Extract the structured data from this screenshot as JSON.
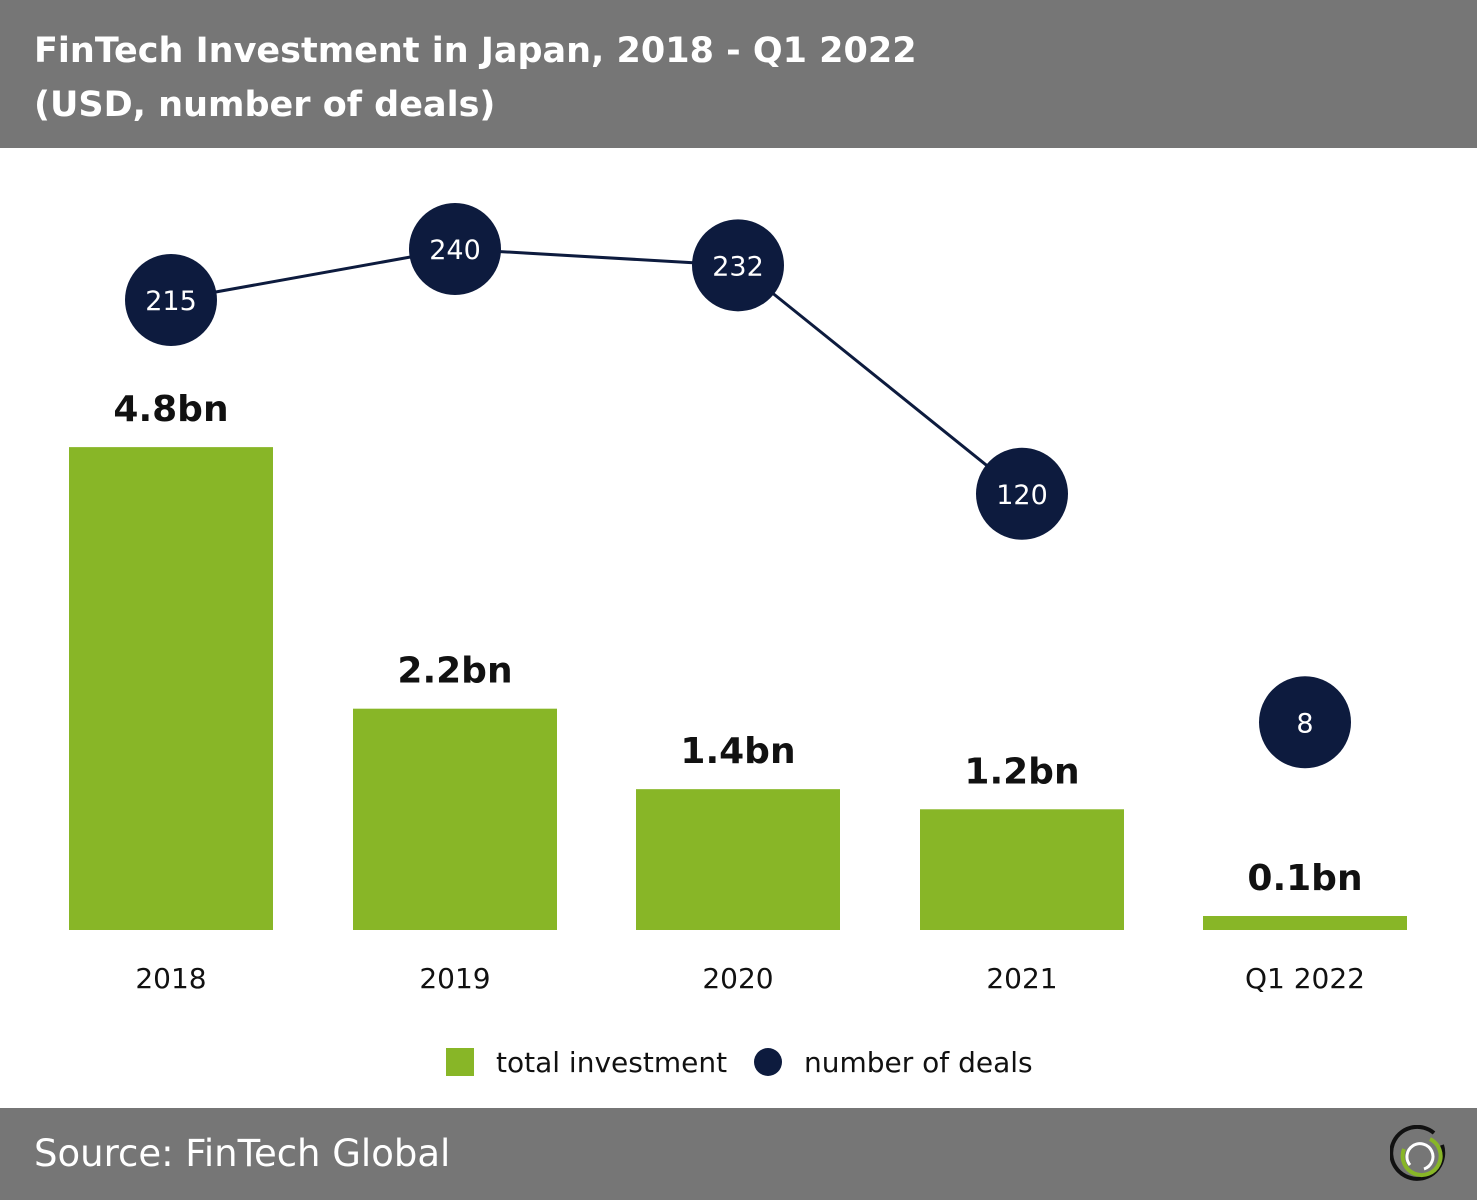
{
  "header": {
    "title_line1": "FinTech Investment in Japan, 2018 - Q1 2022",
    "title_line2": "(USD, number of deals)"
  },
  "footer": {
    "source": "Source: FinTech Global"
  },
  "colors": {
    "bar": "#88b627",
    "deals": "#0d1b3e",
    "header": "#767676"
  },
  "chart_data": {
    "type": "bar",
    "title": "FinTech Investment in Japan, 2018 - Q1 2022",
    "subtitle": "(USD, number of deals)",
    "categories": [
      "2018",
      "2019",
      "2020",
      "2021",
      "Q1 2022"
    ],
    "series": [
      {
        "name": "total investment",
        "type": "bar",
        "unit": "USD bn",
        "values": [
          4.8,
          2.2,
          1.4,
          1.2,
          0.1
        ],
        "labels": [
          "4.8bn",
          "2.2bn",
          "1.4bn",
          "1.2bn",
          "0.1bn"
        ]
      },
      {
        "name": "number of deals",
        "type": "line",
        "values": [
          215,
          240,
          232,
          120,
          8
        ],
        "labels": [
          "215",
          "240",
          "232",
          "120",
          "8"
        ],
        "connected_points": 4
      }
    ],
    "legend": {
      "position": "bottom-center",
      "items": [
        "total investment",
        "number of deals"
      ]
    },
    "grid": false
  }
}
